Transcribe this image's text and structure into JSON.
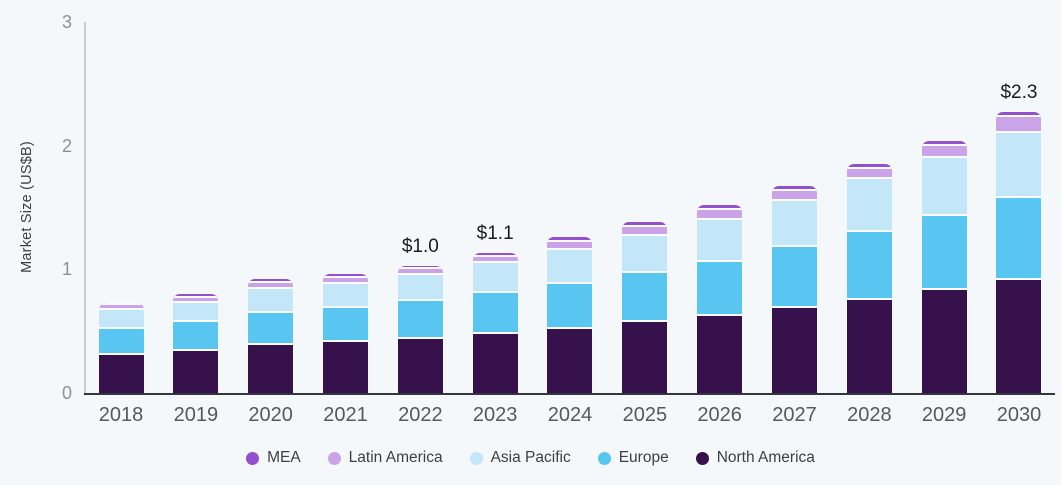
{
  "chart_data": {
    "type": "bar",
    "stacked": true,
    "title": "",
    "xlabel": "",
    "ylabel": "Market Size (US$B)",
    "ylim": [
      0,
      3
    ],
    "yticks": [
      "0",
      "1",
      "2",
      "3"
    ],
    "grid": false,
    "legend_position": "bottom",
    "legend_order": [
      "MEA",
      "Latin America",
      "Asia Pacific",
      "Europe",
      "North America"
    ],
    "categories": [
      "2018",
      "2019",
      "2020",
      "2021",
      "2022",
      "2023",
      "2024",
      "2025",
      "2026",
      "2027",
      "2028",
      "2029",
      "2030"
    ],
    "series": [
      {
        "name": "North America",
        "color": "#36114B",
        "values": [
          0.31,
          0.34,
          0.39,
          0.41,
          0.44,
          0.48,
          0.52,
          0.57,
          0.62,
          0.69,
          0.75,
          0.83,
          0.91
        ]
      },
      {
        "name": "Europe",
        "color": "#58C6F0",
        "values": [
          0.21,
          0.23,
          0.26,
          0.28,
          0.3,
          0.33,
          0.36,
          0.4,
          0.44,
          0.49,
          0.55,
          0.6,
          0.67
        ]
      },
      {
        "name": "Asia Pacific",
        "color": "#C3E6F8",
        "values": [
          0.15,
          0.16,
          0.19,
          0.19,
          0.21,
          0.24,
          0.28,
          0.3,
          0.34,
          0.37,
          0.43,
          0.47,
          0.52
        ]
      },
      {
        "name": "Latin America",
        "color": "#CBA3E8",
        "values": [
          0.04,
          0.04,
          0.05,
          0.05,
          0.05,
          0.05,
          0.06,
          0.07,
          0.08,
          0.08,
          0.08,
          0.1,
          0.13
        ]
      },
      {
        "name": "MEA",
        "color": "#9350CE",
        "values": [
          0.02,
          0.03,
          0.03,
          0.03,
          0.03,
          0.03,
          0.04,
          0.04,
          0.04,
          0.04,
          0.04,
          0.04,
          0.04
        ]
      }
    ],
    "totals": [
      0.73,
      0.8,
      0.92,
      0.96,
      1.03,
      1.13,
      1.26,
      1.38,
      1.52,
      1.67,
      1.85,
      2.04,
      2.27
    ],
    "bar_labels": {
      "2022": "$1.0",
      "2023": "$1.1",
      "2030": "$2.3"
    }
  },
  "colors": {
    "background": "#F5F8FA",
    "x_axis_line": "#33363A",
    "y_axis_line": "#C9CDD1",
    "y_tick_text": "#8D9298",
    "x_tick_text": "#55595F",
    "value_label_text": "#1B1C1E",
    "legend_text": "#3C4046"
  }
}
